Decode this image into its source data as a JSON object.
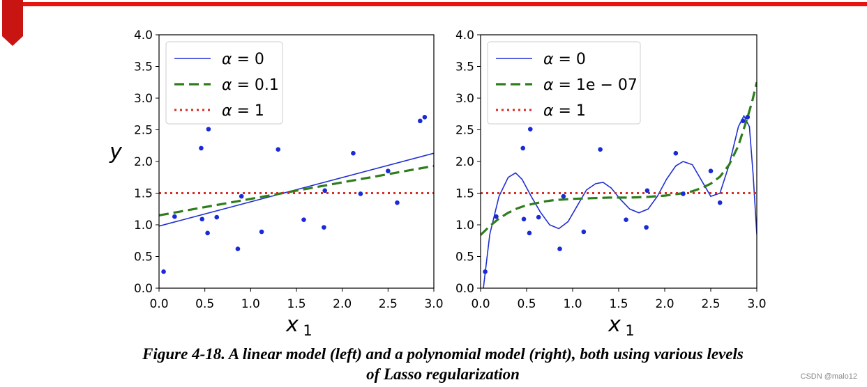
{
  "chart_data": [
    {
      "type": "line+scatter",
      "panel": "left",
      "xlabel": "x",
      "xlabel_sub": "1",
      "ylabel": "y",
      "xlim": [
        0.0,
        3.0
      ],
      "ylim": [
        0.0,
        4.0
      ],
      "xticks": [
        "0.0",
        "0.5",
        "1.0",
        "1.5",
        "2.0",
        "2.5",
        "3.0"
      ],
      "yticks": [
        "0.0",
        "0.5",
        "1.0",
        "1.5",
        "2.0",
        "2.5",
        "3.0",
        "3.5",
        "4.0"
      ],
      "legend_position": "upper-left",
      "scatter": {
        "x": [
          0.05,
          0.17,
          0.46,
          0.47,
          0.53,
          0.54,
          0.63,
          0.86,
          0.9,
          1.12,
          1.3,
          1.58,
          1.8,
          1.81,
          2.12,
          2.2,
          2.5,
          2.6,
          2.85,
          2.9
        ],
        "y": [
          0.26,
          1.13,
          2.21,
          1.09,
          0.87,
          2.51,
          1.12,
          0.62,
          1.45,
          0.89,
          2.19,
          1.08,
          0.96,
          1.54,
          2.13,
          1.49,
          1.85,
          1.35,
          2.64,
          2.7
        ]
      },
      "series": [
        {
          "name": "α = 0",
          "style": "solid",
          "color": "#1f2fd0",
          "x": [
            0.0,
            3.0
          ],
          "y": [
            0.98,
            2.13
          ]
        },
        {
          "name": "α = 0.1",
          "style": "dashed",
          "color": "#2e7d1b",
          "x": [
            0.0,
            3.0
          ],
          "y": [
            1.15,
            1.93
          ]
        },
        {
          "name": "α = 1",
          "style": "dotted",
          "color": "#d62c24",
          "x": [
            0.0,
            3.0
          ],
          "y": [
            1.5,
            1.5
          ]
        }
      ]
    },
    {
      "type": "line+scatter",
      "panel": "right",
      "xlabel": "x",
      "xlabel_sub": "1",
      "ylabel": "",
      "xlim": [
        0.0,
        3.0
      ],
      "ylim": [
        0.0,
        4.0
      ],
      "xticks": [
        "0.0",
        "0.5",
        "1.0",
        "1.5",
        "2.0",
        "2.5",
        "3.0"
      ],
      "yticks": [
        "0.0",
        "0.5",
        "1.0",
        "1.5",
        "2.0",
        "2.5",
        "3.0",
        "3.5",
        "4.0"
      ],
      "legend_position": "upper-left",
      "scatter": {
        "x": [
          0.05,
          0.17,
          0.46,
          0.47,
          0.53,
          0.54,
          0.63,
          0.86,
          0.9,
          1.12,
          1.3,
          1.58,
          1.8,
          1.81,
          2.12,
          2.2,
          2.5,
          2.6,
          2.85,
          2.9
        ],
        "y": [
          0.26,
          1.13,
          2.21,
          1.09,
          0.87,
          2.51,
          1.12,
          0.62,
          1.45,
          0.89,
          2.19,
          1.08,
          0.96,
          1.54,
          2.13,
          1.49,
          1.85,
          1.35,
          2.64,
          2.7
        ]
      },
      "series": [
        {
          "name": "α = 0",
          "style": "solid",
          "color": "#1f2fd0",
          "x": [
            0.03,
            0.1,
            0.2,
            0.3,
            0.38,
            0.45,
            0.55,
            0.65,
            0.75,
            0.85,
            0.95,
            1.05,
            1.15,
            1.25,
            1.33,
            1.42,
            1.52,
            1.62,
            1.72,
            1.82,
            1.92,
            2.02,
            2.12,
            2.2,
            2.3,
            2.4,
            2.5,
            2.6,
            2.7,
            2.8,
            2.86,
            2.92,
            2.96,
            3.0
          ],
          "y": [
            0.0,
            0.85,
            1.45,
            1.75,
            1.82,
            1.72,
            1.45,
            1.2,
            1.0,
            0.94,
            1.05,
            1.3,
            1.55,
            1.65,
            1.67,
            1.58,
            1.4,
            1.25,
            1.19,
            1.25,
            1.45,
            1.72,
            1.93,
            2.0,
            1.95,
            1.7,
            1.45,
            1.5,
            1.95,
            2.55,
            2.72,
            2.55,
            1.8,
            0.85
          ]
        },
        {
          "name": "α = 1e − 07",
          "style": "dashed",
          "color": "#2e7d1b",
          "x": [
            0.0,
            0.1,
            0.2,
            0.3,
            0.4,
            0.5,
            0.6,
            0.7,
            0.8,
            0.9,
            1.0,
            1.2,
            1.4,
            1.6,
            1.8,
            2.0,
            2.2,
            2.3,
            2.4,
            2.5,
            2.6,
            2.7,
            2.8,
            2.9,
            2.95,
            3.0
          ],
          "y": [
            0.84,
            0.98,
            1.1,
            1.19,
            1.26,
            1.31,
            1.34,
            1.37,
            1.39,
            1.4,
            1.41,
            1.42,
            1.43,
            1.43,
            1.44,
            1.46,
            1.5,
            1.53,
            1.58,
            1.65,
            1.76,
            1.95,
            2.25,
            2.7,
            2.95,
            3.25
          ]
        },
        {
          "name": "α = 1",
          "style": "dotted",
          "color": "#d62c24",
          "x": [
            0.0,
            3.0
          ],
          "y": [
            1.5,
            1.5
          ]
        }
      ]
    }
  ],
  "caption": {
    "line1": "Figure 4-18. A linear model (left) and a polynomial model (right), both using various levels",
    "line2": "of Lasso regularization"
  },
  "watermark": "CSDN @malo12"
}
